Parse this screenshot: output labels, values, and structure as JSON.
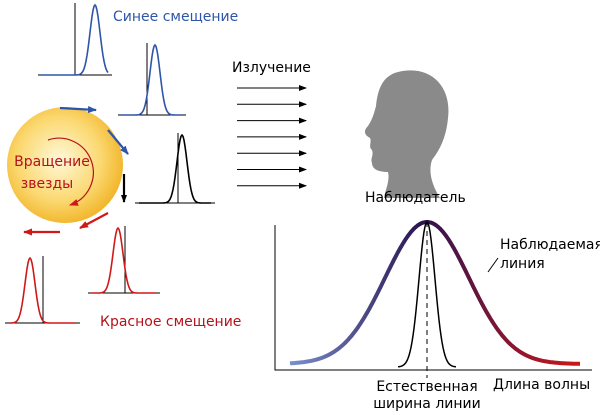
{
  "blue_shift": "Синее смещение",
  "emission": "Излучение",
  "star_rotation": [
    "Вращение",
    "звезды"
  ],
  "observer": "Наблюдатель",
  "observed_line": [
    "Наблюдаемая",
    "линия"
  ],
  "red_shift": "Красное смещение",
  "natural_width": [
    "Естественная",
    "ширина линии"
  ],
  "wavelength": "Длина волны"
}
